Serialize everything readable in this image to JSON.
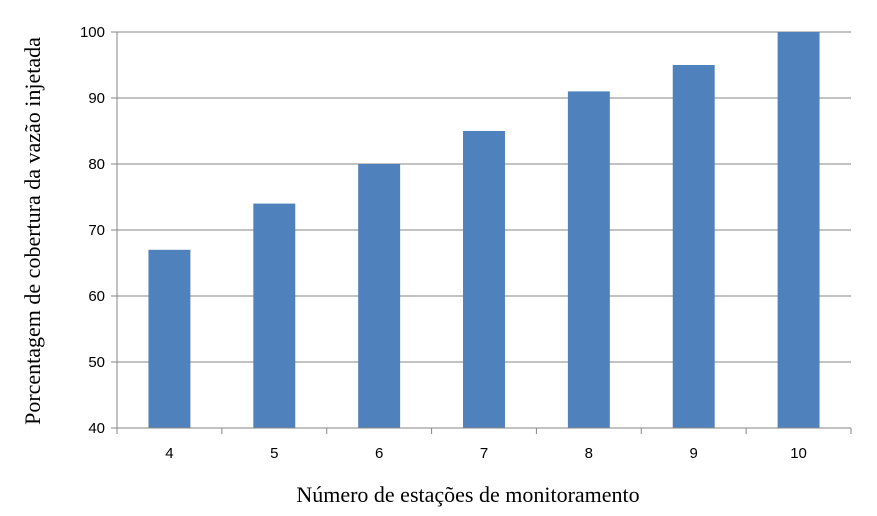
{
  "chart_data": {
    "type": "bar",
    "title": "",
    "xlabel": "Número de estações de monitoramento",
    "ylabel": "Porcentagem de cobertura da vazão injetada",
    "categories": [
      "4",
      "5",
      "6",
      "7",
      "8",
      "9",
      "10"
    ],
    "values": [
      67,
      74,
      80,
      85,
      91,
      95,
      100
    ],
    "ylim": [
      40,
      100
    ],
    "yticks": [
      "40",
      "50",
      "60",
      "70",
      "80",
      "90",
      "100"
    ],
    "grid": true,
    "legend": "none",
    "bar_color": "#4f81bd",
    "grid_color": "#868686",
    "axis_color": "#868686"
  }
}
